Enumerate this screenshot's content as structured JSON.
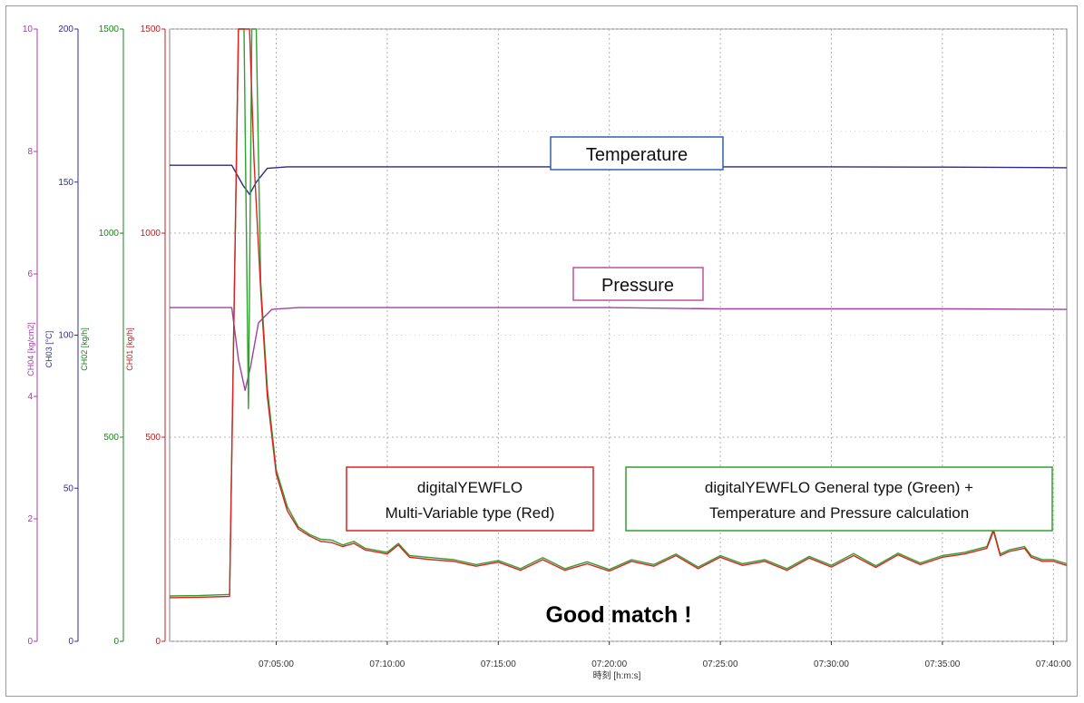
{
  "chart_data": {
    "type": "line",
    "x_axis": {
      "ticks": [
        "07:05:00",
        "07:10:00",
        "07:15:00",
        "07:20:00",
        "07:25:00",
        "07:30:00",
        "07:35:00",
        "07:40:00"
      ],
      "tick_minutes": [
        5,
        10,
        15,
        20,
        25,
        30,
        35,
        40
      ],
      "range_minutes": [
        0.2,
        40.6
      ],
      "label": "時刻 [h:m:s]"
    },
    "y_axes": [
      {
        "id": "ch4",
        "label": "CH04 [kg/cm2]",
        "color": "#a040a0",
        "range": [
          0,
          10
        ],
        "ticks": [
          "0",
          "2",
          "4",
          "6",
          "8",
          "10"
        ],
        "tick_values": [
          0,
          2,
          4,
          6,
          8,
          10
        ]
      },
      {
        "id": "ch3",
        "label": "CH03 [°C]",
        "color": "#303090",
        "range": [
          0,
          200
        ],
        "ticks": [
          "0",
          "50",
          "100",
          "150",
          "200"
        ],
        "tick_values": [
          0,
          50,
          100,
          150,
          200
        ]
      },
      {
        "id": "ch2",
        "label": "CH02 [kg/h]",
        "color": "#208020",
        "range": [
          0,
          1500
        ],
        "ticks": [
          "0",
          "500",
          "1000",
          "1500"
        ],
        "tick_values": [
          0,
          500,
          1000,
          1500
        ]
      },
      {
        "id": "ch1",
        "label": "CH01 [kg/h]",
        "color": "#c02020",
        "range": [
          0,
          1500
        ],
        "ticks": [
          "0",
          "500",
          "1000",
          "1500"
        ],
        "tick_values": [
          0,
          500,
          1000,
          1500
        ]
      }
    ],
    "series": [
      {
        "name": "Temperature",
        "axis": "ch3",
        "color": "#2a2a80",
        "points": [
          [
            0.2,
            155.5
          ],
          [
            3.0,
            155.5
          ],
          [
            3.5,
            149
          ],
          [
            3.8,
            146
          ],
          [
            4.1,
            150
          ],
          [
            4.6,
            154.5
          ],
          [
            5.5,
            155
          ],
          [
            10,
            155
          ],
          [
            15,
            155
          ],
          [
            20,
            155
          ],
          [
            25,
            155
          ],
          [
            30,
            155
          ],
          [
            35,
            154.9
          ],
          [
            40.6,
            154.7
          ]
        ]
      },
      {
        "name": "Pressure",
        "axis": "ch4",
        "color": "#a040a0",
        "points": [
          [
            0.2,
            5.45
          ],
          [
            3.0,
            5.45
          ],
          [
            3.3,
            4.6
          ],
          [
            3.6,
            4.1
          ],
          [
            3.85,
            4.5
          ],
          [
            4.2,
            5.2
          ],
          [
            4.8,
            5.42
          ],
          [
            6,
            5.45
          ],
          [
            10,
            5.45
          ],
          [
            15,
            5.45
          ],
          [
            20,
            5.45
          ],
          [
            25,
            5.43
          ],
          [
            30,
            5.43
          ],
          [
            35,
            5.43
          ],
          [
            40.6,
            5.42
          ]
        ]
      },
      {
        "name": "digitalYEWFLO General type",
        "axis": "ch2",
        "color": "#30a030",
        "points": [
          [
            0.2,
            111
          ],
          [
            1.5,
            112
          ],
          [
            2.9,
            115
          ],
          [
            3.3,
            1500
          ],
          [
            3.55,
            1500
          ],
          [
            3.75,
            570
          ],
          [
            3.9,
            1500
          ],
          [
            4.1,
            1500
          ],
          [
            4.3,
            880
          ],
          [
            4.6,
            620
          ],
          [
            5.0,
            420
          ],
          [
            5.5,
            330
          ],
          [
            6.0,
            280
          ],
          [
            6.5,
            262
          ],
          [
            7.0,
            250
          ],
          [
            7.5,
            248
          ],
          [
            8,
            236
          ],
          [
            8.5,
            245
          ],
          [
            9,
            228
          ],
          [
            10,
            218
          ],
          [
            10.5,
            240
          ],
          [
            11,
            210
          ],
          [
            12,
            205
          ],
          [
            13,
            200
          ],
          [
            14,
            188
          ],
          [
            15,
            198
          ],
          [
            16,
            178
          ],
          [
            17,
            205
          ],
          [
            18,
            178
          ],
          [
            19,
            195
          ],
          [
            20,
            176
          ],
          [
            21,
            200
          ],
          [
            22,
            188
          ],
          [
            23,
            214
          ],
          [
            24,
            182
          ],
          [
            25,
            210
          ],
          [
            26,
            190
          ],
          [
            27,
            200
          ],
          [
            28,
            178
          ],
          [
            29,
            208
          ],
          [
            30,
            186
          ],
          [
            31,
            215
          ],
          [
            32,
            185
          ],
          [
            33,
            216
          ],
          [
            34,
            192
          ],
          [
            35,
            210
          ],
          [
            36,
            218
          ],
          [
            37,
            232
          ],
          [
            37.3,
            275
          ],
          [
            37.6,
            214
          ],
          [
            38,
            224
          ],
          [
            38.7,
            232
          ],
          [
            39,
            210
          ],
          [
            39.5,
            200
          ],
          [
            40,
            200
          ],
          [
            40.6,
            190
          ]
        ]
      },
      {
        "name": "digitalYEWFLO Multi-Variable type",
        "axis": "ch1",
        "color": "#dd2222",
        "points": [
          [
            0.2,
            107
          ],
          [
            1.5,
            108
          ],
          [
            2.9,
            110
          ],
          [
            3.3,
            1500
          ],
          [
            3.55,
            1500
          ],
          [
            3.8,
            1500
          ],
          [
            4.0,
            1180
          ],
          [
            4.3,
            860
          ],
          [
            4.6,
            600
          ],
          [
            5.0,
            410
          ],
          [
            5.5,
            320
          ],
          [
            6.0,
            275
          ],
          [
            6.5,
            258
          ],
          [
            7.0,
            245
          ],
          [
            7.5,
            242
          ],
          [
            8,
            232
          ],
          [
            8.5,
            240
          ],
          [
            9,
            224
          ],
          [
            10,
            214
          ],
          [
            10.5,
            236
          ],
          [
            11,
            206
          ],
          [
            12,
            200
          ],
          [
            13,
            196
          ],
          [
            14,
            184
          ],
          [
            15,
            194
          ],
          [
            16,
            174
          ],
          [
            17,
            200
          ],
          [
            18,
            174
          ],
          [
            19,
            190
          ],
          [
            20,
            172
          ],
          [
            21,
            196
          ],
          [
            22,
            184
          ],
          [
            23,
            210
          ],
          [
            24,
            178
          ],
          [
            25,
            206
          ],
          [
            26,
            186
          ],
          [
            27,
            196
          ],
          [
            28,
            174
          ],
          [
            29,
            204
          ],
          [
            30,
            182
          ],
          [
            31,
            210
          ],
          [
            32,
            181
          ],
          [
            33,
            212
          ],
          [
            34,
            188
          ],
          [
            35,
            206
          ],
          [
            36,
            214
          ],
          [
            37,
            228
          ],
          [
            37.3,
            270
          ],
          [
            37.6,
            210
          ],
          [
            38,
            220
          ],
          [
            38.7,
            228
          ],
          [
            39,
            206
          ],
          [
            39.5,
            196
          ],
          [
            40,
            196
          ],
          [
            40.6,
            186
          ]
        ]
      }
    ],
    "annotations": {
      "temperature_box": "Temperature",
      "pressure_box": "Pressure",
      "red_box_line1": "digitalYEWFLO",
      "red_box_line2": "Multi-Variable type (Red)",
      "green_box_line1": "digitalYEWFLO General type (Green) +",
      "green_box_line2": "Temperature and Pressure calculation",
      "good_match": "Good match !"
    },
    "colors": {
      "temperature_box": "#3060b0",
      "pressure_box": "#c050a0",
      "red_box": "#dd2222",
      "green_box": "#30a030",
      "grid": "#b0b0b0"
    },
    "grid": true
  }
}
